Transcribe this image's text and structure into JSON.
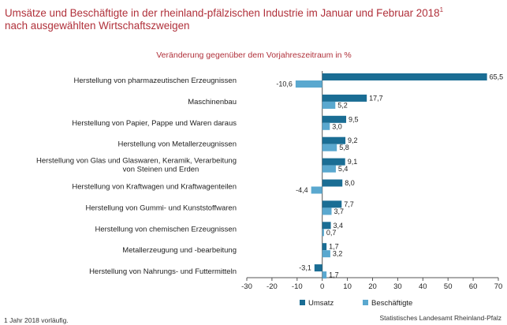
{
  "title_line1": "Umsätze und Beschäftigte in der rheinland-pfälzischen Industrie im Januar und Februar 2018",
  "title_sup": "1",
  "title_line2": "nach ausgewählten Wirtschaftszweigen",
  "footnote": "1 Jahr 2018 vorläufig.",
  "source": "Statistisches Landesamt Rheinland-Pfalz",
  "colors": {
    "umsatz": "#1a6d94",
    "beschaeftigte": "#5aa8cf",
    "title": "#b0303a"
  },
  "chart_data": {
    "type": "bar",
    "orientation": "horizontal",
    "subtitle": "Veränderung gegenüber dem Vorjahreszeitraum in %",
    "categories": [
      [
        "Herstellung von pharmazeutischen Erzeugnissen"
      ],
      [
        "Maschinenbau"
      ],
      [
        "Herstellung von Papier, Pappe und Waren daraus"
      ],
      [
        "Herstellung von Metallerzeugnissen"
      ],
      [
        "Herstellung von Glas und Glaswaren, Keramik, Verarbeitung",
        "von Steinen und Erden"
      ],
      [
        "Herstellung von Kraftwagen und Kraftwagenteilen"
      ],
      [
        "Herstellung von Gummi- und Kunststoffwaren"
      ],
      [
        "Herstellung von chemischen Erzeugnissen"
      ],
      [
        "Metallerzeugung und -bearbeitung"
      ],
      [
        "Herstellung von Nahrungs- und Futtermitteln"
      ]
    ],
    "series": [
      {
        "name": "Umsatz",
        "values": [
          65.5,
          17.7,
          9.5,
          9.2,
          9.1,
          8.0,
          7.7,
          3.4,
          1.7,
          -3.1
        ],
        "labels": [
          "65,5",
          "17,7",
          "9,5",
          "9,2",
          "9,1",
          "8,0",
          "7,7",
          "3,4",
          "1,7",
          "-3,1"
        ]
      },
      {
        "name": "Beschäftigte",
        "values": [
          -10.6,
          5.2,
          3.0,
          5.8,
          5.4,
          -4.4,
          3.7,
          0.7,
          3.2,
          1.7
        ],
        "labels": [
          "-10,6",
          "5,2",
          "3,0",
          "5,8",
          "5,4",
          "-4,4",
          "3,7",
          "0,7",
          "3,2",
          "1,7"
        ]
      }
    ],
    "xlim": [
      -30,
      70
    ],
    "xticks": [
      -30,
      -20,
      -10,
      0,
      10,
      20,
      30,
      40,
      50,
      60,
      70
    ],
    "legend_position": "bottom"
  }
}
